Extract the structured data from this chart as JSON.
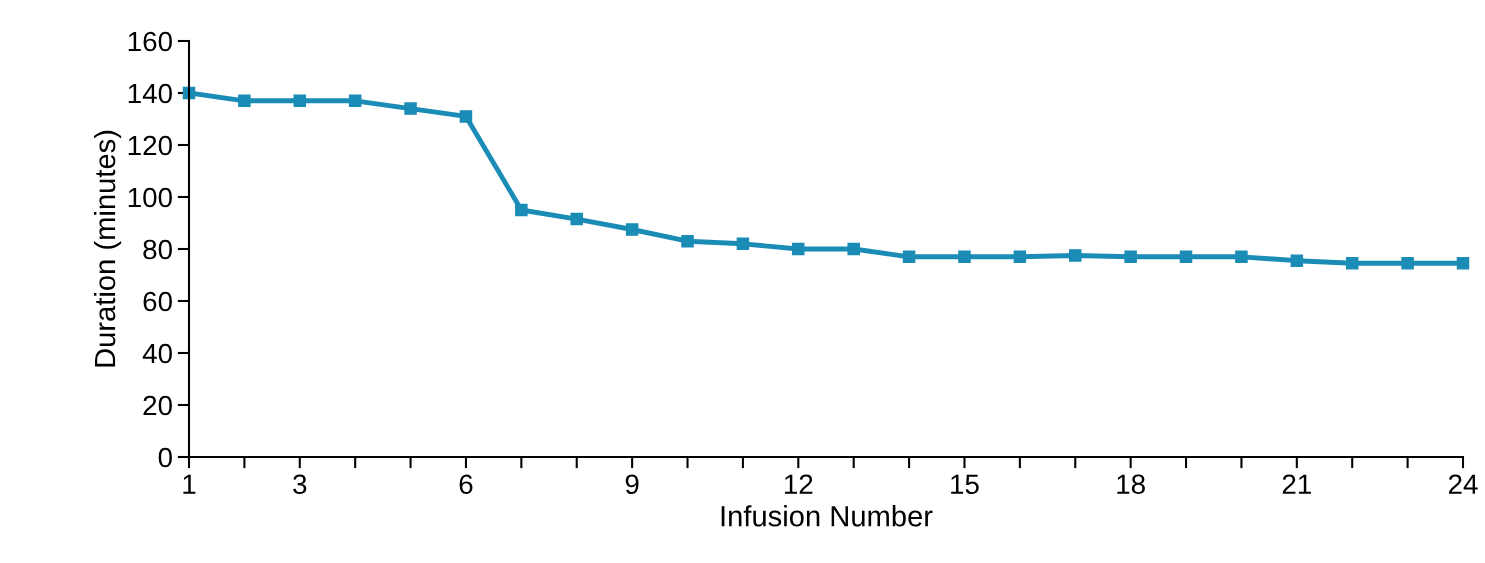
{
  "chart_data": {
    "type": "line",
    "xlabel": "Infusion Number",
    "ylabel": "Duration (minutes)",
    "x": [
      1,
      2,
      3,
      4,
      5,
      6,
      7,
      8,
      9,
      10,
      11,
      12,
      13,
      14,
      15,
      16,
      17,
      18,
      19,
      20,
      21,
      22,
      23,
      24
    ],
    "series": [
      {
        "color": "#1a8cb6",
        "values": [
          140,
          137,
          137,
          137,
          134,
          131,
          95,
          91.5,
          87.5,
          83,
          82,
          80,
          80,
          77,
          77,
          77,
          77.5,
          77,
          77,
          77,
          75.5,
          74.5,
          74.5,
          74.5
        ]
      }
    ],
    "xlim": [
      1,
      24
    ],
    "xticks": [
      1,
      {
        "value": 2,
        "label": null
      },
      3,
      {
        "value": 4,
        "label": null
      },
      {
        "value": 5,
        "label": null
      },
      6,
      {
        "value": 7,
        "label": null
      },
      {
        "value": 8,
        "label": null
      },
      9,
      {
        "value": 10,
        "label": null
      },
      {
        "value": 11,
        "label": null
      },
      12,
      {
        "value": 13,
        "label": null
      },
      {
        "value": 14,
        "label": null
      },
      15,
      {
        "value": 16,
        "label": null
      },
      {
        "value": 17,
        "label": null
      },
      18,
      {
        "value": 19,
        "label": null
      },
      {
        "value": 20,
        "label": null
      },
      21,
      {
        "value": 22,
        "label": null
      },
      {
        "value": 23,
        "label": null
      },
      24
    ],
    "ylim": [
      0,
      160
    ],
    "yticks": [
      0,
      20,
      40,
      60,
      80,
      100,
      120,
      140,
      160
    ],
    "marker": "square",
    "line_style": "solid",
    "grid": false,
    "legend": false
  }
}
